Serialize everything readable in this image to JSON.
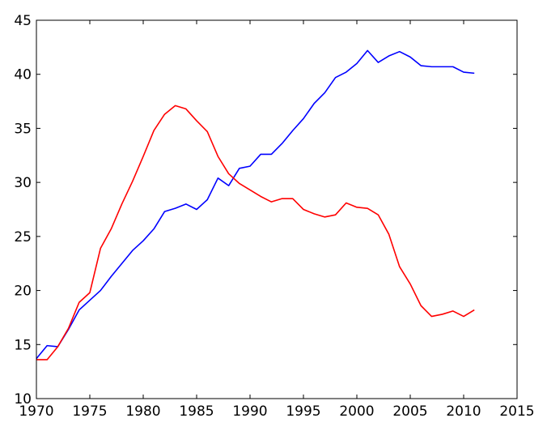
{
  "chart_data": {
    "type": "line",
    "title": "",
    "xlabel": "",
    "ylabel": "",
    "xlim": [
      1970,
      2015
    ],
    "ylim": [
      10,
      45
    ],
    "x_ticks": [
      "1970",
      "1975",
      "1980",
      "1985",
      "1990",
      "1995",
      "2000",
      "2005",
      "2010",
      "2015"
    ],
    "y_ticks": [
      "10",
      "15",
      "20",
      "25",
      "30",
      "35",
      "40",
      "45"
    ],
    "grid": false,
    "legend": "none",
    "x": [
      1970,
      1971,
      1972,
      1973,
      1974,
      1975,
      1976,
      1977,
      1978,
      1979,
      1980,
      1981,
      1982,
      1983,
      1984,
      1985,
      1986,
      1987,
      1988,
      1989,
      1990,
      1991,
      1992,
      1993,
      1994,
      1995,
      1996,
      1997,
      1998,
      1999,
      2000,
      2001,
      2002,
      2003,
      2004,
      2005,
      2006,
      2007,
      2008,
      2009,
      2010,
      2011
    ],
    "series": [
      {
        "color": "#0000ff",
        "values": [
          13.7,
          14.9,
          14.8,
          16.4,
          18.2,
          19.1,
          20.0,
          21.3,
          22.5,
          23.7,
          24.6,
          25.7,
          27.3,
          27.6,
          28.0,
          27.5,
          28.4,
          30.4,
          29.7,
          31.3,
          31.5,
          32.6,
          32.6,
          33.6,
          34.8,
          35.9,
          37.3,
          38.3,
          39.7,
          40.2,
          41.0,
          42.2,
          41.1,
          41.7,
          42.1,
          41.6,
          40.8,
          40.7,
          40.7,
          40.7,
          40.2,
          40.1
        ]
      },
      {
        "color": "#ff0000",
        "values": [
          13.6,
          13.6,
          14.8,
          16.5,
          18.9,
          19.8,
          23.9,
          25.7,
          28.0,
          30.1,
          32.4,
          34.8,
          36.3,
          37.1,
          36.8,
          35.7,
          34.7,
          32.4,
          30.8,
          29.9,
          29.3,
          28.7,
          28.2,
          28.5,
          28.5,
          27.5,
          27.1,
          26.8,
          27.0,
          28.1,
          27.7,
          27.6,
          27.0,
          25.2,
          22.2,
          20.6,
          18.6,
          17.6,
          17.8,
          18.1,
          17.6,
          18.2
        ]
      }
    ]
  }
}
